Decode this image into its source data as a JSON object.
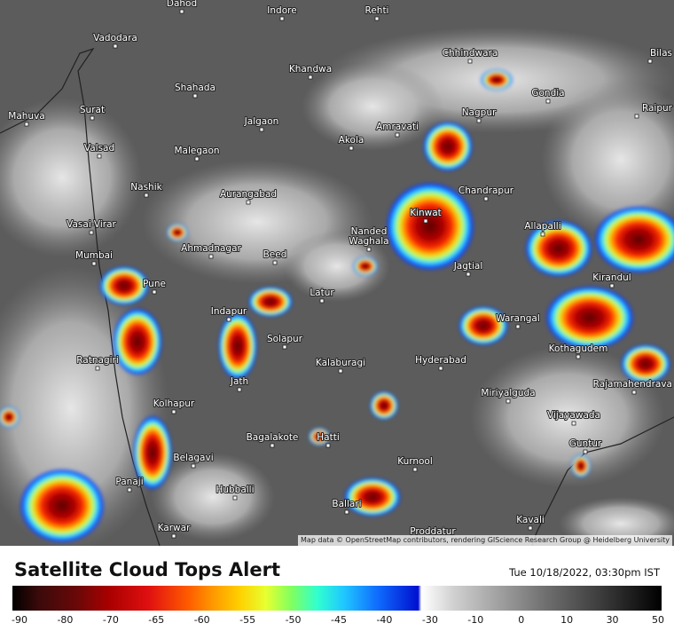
{
  "header": {
    "title": "Satellite Cloud Tops Alert",
    "timestamp": "Tue 10/18/2022, 03:30pm IST"
  },
  "map": {
    "attribution": "Map data © OpenStreetMap contributors, rendering GIScience Research Group @ Heidelberg University",
    "cities": [
      "Dahod",
      "Indore",
      "Rehti",
      "Vadodara",
      "Bilas",
      "Chhindwara",
      "Khandwa",
      "Shahada",
      "Gondia",
      "Mahuva",
      "Surat",
      "Jalgaon",
      "Nagpur",
      "Raipur",
      "Amravati",
      "Valsad",
      "Malegaon",
      "Akola",
      "Nashik",
      "Aurangabad",
      "Chandrapur",
      "Kinwat",
      "Vasai-Virar",
      "Nanded",
      "Waghala",
      "Allapalli",
      "Ahmadnagar",
      "Beed",
      "Mumbai",
      "Jagtial",
      "Pune",
      "Kirandul",
      "Latur",
      "Indapur",
      "Warangal",
      "Solapur",
      "Kothagudem",
      "Ratnagiri",
      "Kalaburagi",
      "Hyderabad",
      "Rajamahendrava",
      "Jath",
      "Kolhapur",
      "Miriyalguda",
      "Vijayawada",
      "Hatti",
      "Bagalakote",
      "Guntur",
      "Belagavi",
      "Kurnool",
      "Panaji",
      "Hubballi",
      "Ballari",
      "Karwar",
      "Proddatur",
      "Kavali"
    ]
  },
  "legend": {
    "ticks": [
      -90,
      -80,
      -70,
      -65,
      -60,
      -55,
      -50,
      -45,
      -40,
      -30,
      -10,
      0,
      10,
      30,
      50
    ]
  }
}
